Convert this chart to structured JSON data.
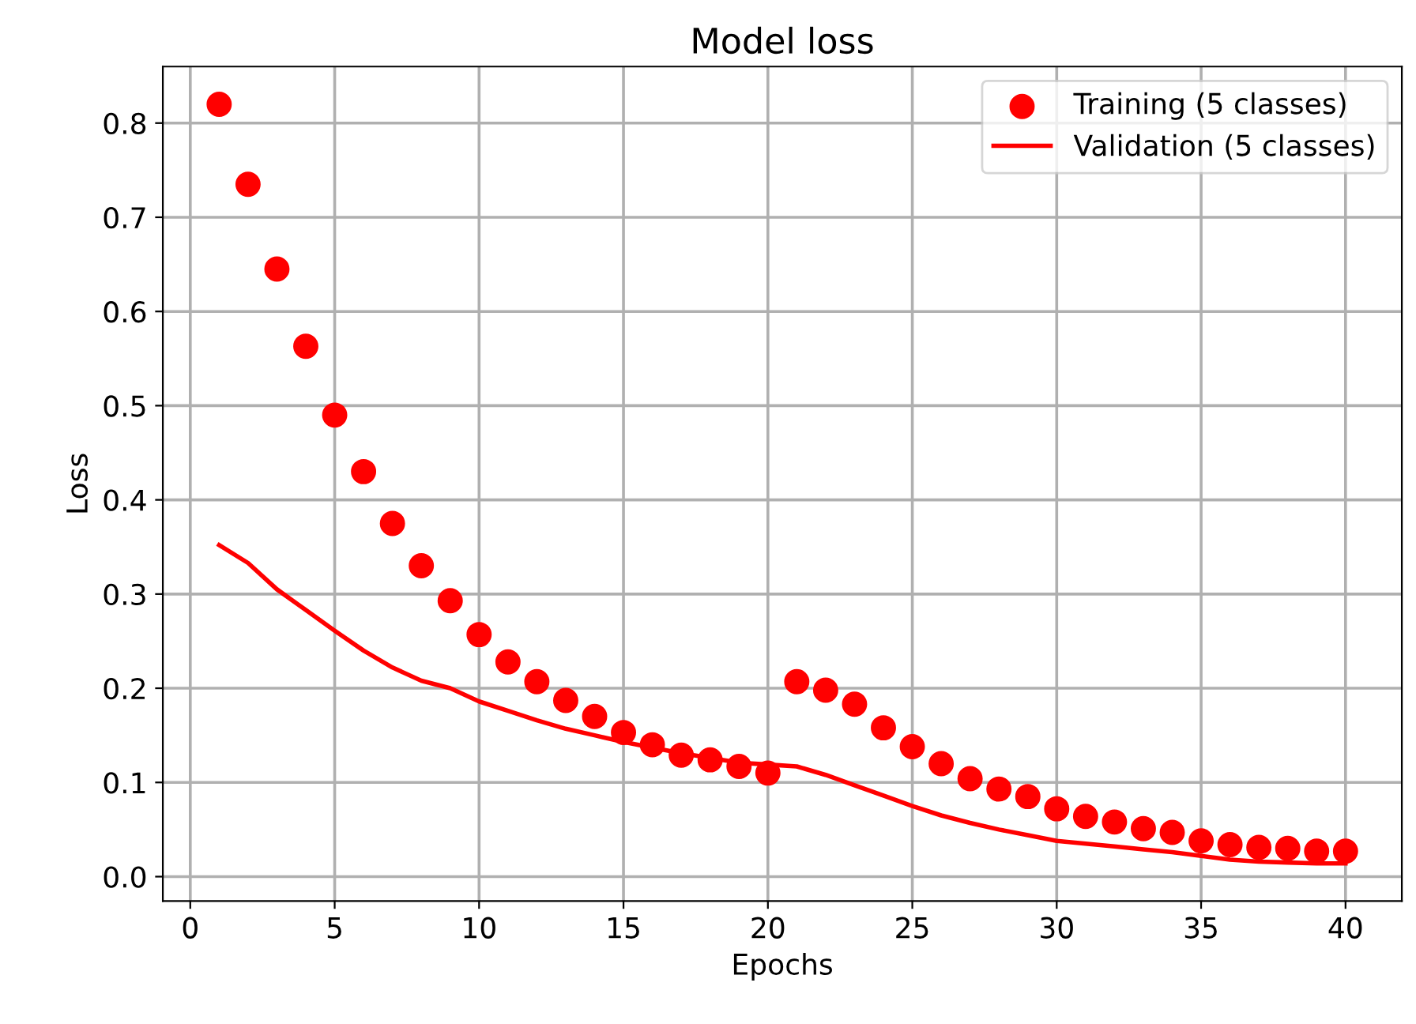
{
  "chart_data": {
    "type": "scatter",
    "title": "Model loss",
    "xlabel": "Epochs",
    "ylabel": "Loss",
    "x": [
      1,
      2,
      3,
      4,
      5,
      6,
      7,
      8,
      9,
      10,
      11,
      12,
      13,
      14,
      15,
      16,
      17,
      18,
      19,
      20,
      21,
      22,
      23,
      24,
      25,
      26,
      27,
      28,
      29,
      30,
      31,
      32,
      33,
      34,
      35,
      36,
      37,
      38,
      39,
      40
    ],
    "series": [
      {
        "name": "Training (5 classes)",
        "color": "#ff0000",
        "marker": "circle",
        "values": [
          0.82,
          0.735,
          0.645,
          0.563,
          0.49,
          0.43,
          0.375,
          0.33,
          0.293,
          0.257,
          0.228,
          0.207,
          0.187,
          0.17,
          0.153,
          0.14,
          0.129,
          0.124,
          0.117,
          0.11,
          0.207,
          0.198,
          0.183,
          0.158,
          0.138,
          0.12,
          0.104,
          0.093,
          0.085,
          0.072,
          0.064,
          0.058,
          0.051,
          0.047,
          0.038,
          0.034,
          0.031,
          0.03,
          0.027,
          0.027
        ]
      },
      {
        "name": "Validation (5 classes)",
        "type": "line",
        "color": "#ff0000",
        "line_style": "solid",
        "values": [
          0.352,
          0.333,
          0.305,
          0.283,
          0.261,
          0.24,
          0.222,
          0.208,
          0.2,
          0.186,
          0.176,
          0.166,
          0.157,
          0.15,
          0.143,
          0.137,
          0.131,
          0.126,
          0.121,
          0.119,
          0.117,
          0.108,
          0.097,
          0.086,
          0.075,
          0.065,
          0.057,
          0.05,
          0.044,
          0.038,
          0.035,
          0.032,
          0.029,
          0.026,
          0.022,
          0.018,
          0.016,
          0.015,
          0.014,
          0.014
        ]
      }
    ],
    "xlim": [
      -0.95,
      41.95
    ],
    "xticks": [
      0,
      5,
      10,
      15,
      20,
      25,
      30,
      35,
      40
    ],
    "ylim": [
      -0.026,
      0.86
    ],
    "yticks": [
      {
        "value": 0,
        "label": "0.0"
      },
      0.1,
      0.2,
      0.3,
      0.4,
      0.5,
      0.6,
      0.7,
      0.8
    ],
    "grid": true,
    "legend": "top right"
  }
}
